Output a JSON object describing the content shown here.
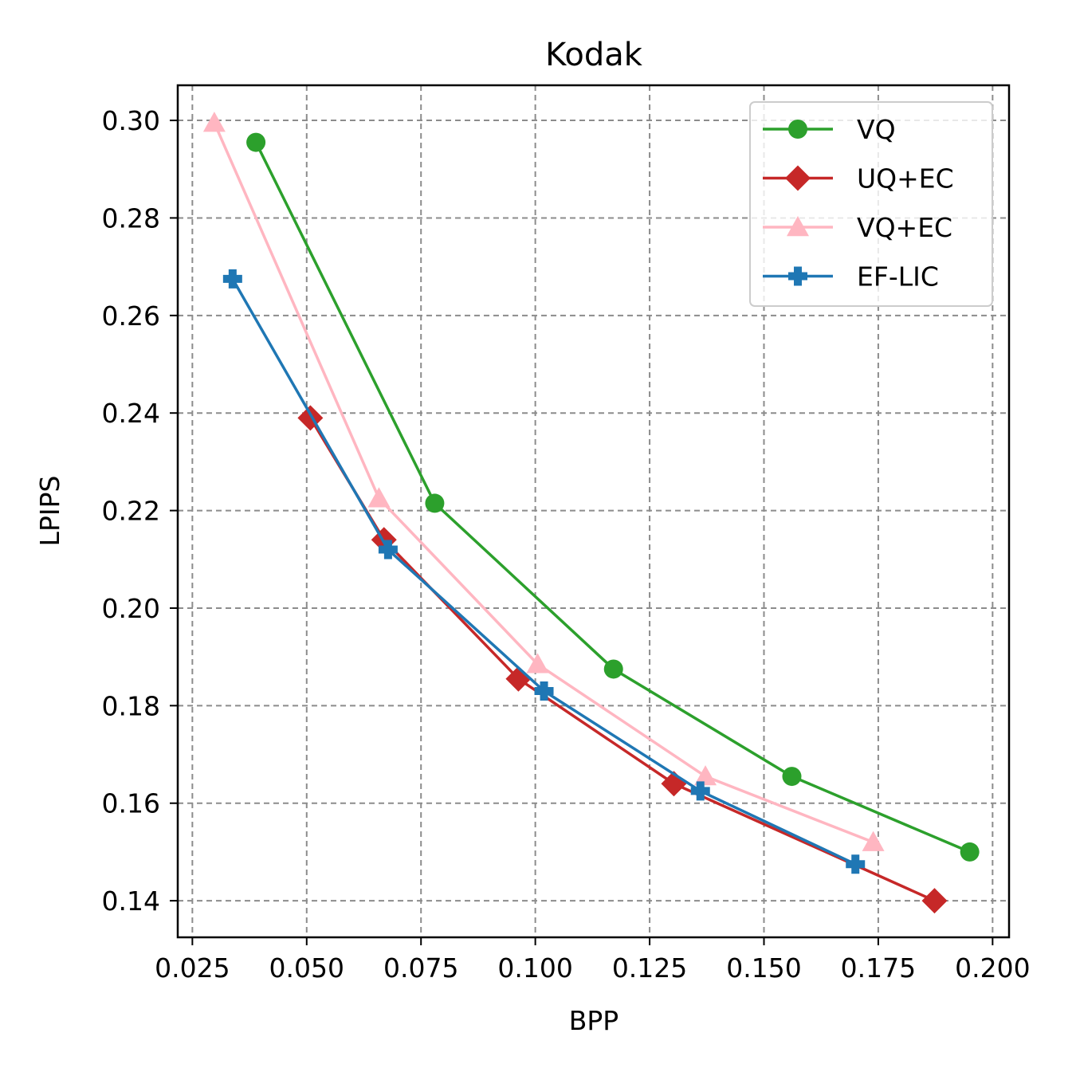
{
  "chart_data": {
    "type": "line",
    "title": "Kodak",
    "xlabel": "BPP",
    "ylabel": "LPIPS",
    "xlim": [
      0.0218,
      0.2036
    ],
    "ylim": [
      0.1325,
      0.3072
    ],
    "xticks": [
      "0.025",
      "0.050",
      "0.075",
      "0.100",
      "0.125",
      "0.150",
      "0.175",
      "0.200"
    ],
    "xtick_values": [
      0.025,
      0.05,
      0.075,
      0.1,
      0.125,
      0.15,
      0.175,
      0.2
    ],
    "yticks": [
      "0.14",
      "0.16",
      "0.18",
      "0.20",
      "0.22",
      "0.24",
      "0.26",
      "0.28",
      "0.30"
    ],
    "ytick_values": [
      0.14,
      0.16,
      0.18,
      0.2,
      0.22,
      0.24,
      0.26,
      0.28,
      0.3
    ],
    "grid": true,
    "legend_position": "top-right",
    "series": [
      {
        "name": "VQ",
        "color": "#2ca02c",
        "marker": "circle",
        "x": [
          0.0389,
          0.078,
          0.1171,
          0.1561,
          0.195
        ],
        "y": [
          0.2955,
          0.2215,
          0.1875,
          0.1655,
          0.15
        ]
      },
      {
        "name": "UQ+EC",
        "color": "#c62828",
        "marker": "diamond",
        "x": [
          0.0508,
          0.0669,
          0.0963,
          0.1303,
          0.1873
        ],
        "y": [
          0.239,
          0.214,
          0.1855,
          0.164,
          0.14
        ]
      },
      {
        "name": "VQ+EC",
        "color": "#ffb6c1",
        "marker": "triangle-up",
        "x": [
          0.0298,
          0.0658,
          0.1005,
          0.1372,
          0.1739
        ],
        "y": [
          0.2995,
          0.2225,
          0.1885,
          0.1655,
          0.152
        ]
      },
      {
        "name": "EF-LIC",
        "color": "#1f77b4",
        "marker": "plus-filled",
        "x": [
          0.0338,
          0.0678,
          0.1019,
          0.1361,
          0.17
        ],
        "y": [
          0.2675,
          0.212,
          0.183,
          0.1625,
          0.1475
        ]
      }
    ]
  }
}
